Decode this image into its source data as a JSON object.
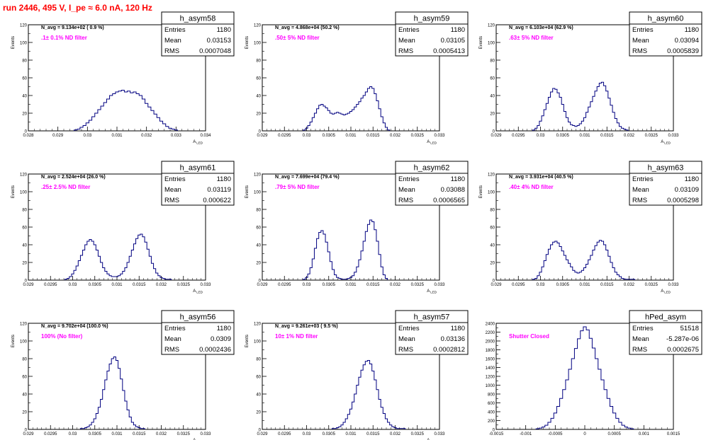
{
  "header": {
    "title": "run 2446,   495 V, I_pe ≈ 6.0 nA, 120 Hz"
  },
  "colors": {
    "title": "#ff0000",
    "annotation": "#ff00ff",
    "histogram": "#000080",
    "frame": "#000000"
  },
  "chart_data": [
    {
      "type": "bar",
      "name": "h_asym58",
      "title": "",
      "ylabel": "Events",
      "xlabel": "A_LED",
      "xlim": [
        0.028,
        0.034
      ],
      "ylim": [
        0,
        120
      ],
      "xticks": [
        "0.028",
        "0.029",
        "0.03",
        "0.031",
        "0.032",
        "0.033",
        "0.034"
      ],
      "yticks": [
        "0",
        "20",
        "40",
        "60",
        "80",
        "100",
        "120"
      ],
      "stats": {
        "title": "h_asym58",
        "rows": [
          [
            "Entries",
            "1180"
          ],
          [
            "Mean",
            "0.03153"
          ],
          [
            "RMS",
            "0.0007048"
          ]
        ]
      },
      "annotations": [
        "N_avg = 9.134e+02 ( 0.9 %)",
        ".1± 0.1% ND filter"
      ],
      "x": [
        0.0296,
        0.0297,
        0.0298,
        0.0299,
        0.03,
        0.0301,
        0.0302,
        0.0303,
        0.0304,
        0.0305,
        0.0306,
        0.0307,
        0.0308,
        0.0309,
        0.031,
        0.0311,
        0.0312,
        0.0313,
        0.0314,
        0.0315,
        0.0316,
        0.0317,
        0.0318,
        0.0319,
        0.032,
        0.0321,
        0.0322,
        0.0323,
        0.0324,
        0.0325,
        0.0326,
        0.0327,
        0.0328,
        0.0329,
        0.033
      ],
      "values": [
        1,
        2,
        4,
        6,
        9,
        12,
        16,
        20,
        24,
        28,
        32,
        36,
        40,
        42,
        44,
        45,
        46,
        44,
        45,
        43,
        44,
        42,
        40,
        36,
        31,
        27,
        23,
        19,
        15,
        11,
        8,
        5,
        3,
        2,
        1
      ]
    },
    {
      "type": "bar",
      "name": "h_asym59",
      "title": "",
      "ylabel": "Events",
      "xlabel": "A_LED",
      "xlim": [
        0.029,
        0.033
      ],
      "ylim": [
        0,
        120
      ],
      "xticks": [
        "0.029",
        "0.0295",
        "0.03",
        "0.0305",
        "0.031",
        "0.0315",
        "0.032",
        "0.0325",
        "0.033"
      ],
      "yticks": [
        "0",
        "20",
        "40",
        "60",
        "80",
        "100",
        "120"
      ],
      "stats": {
        "title": "h_asym59",
        "rows": [
          [
            "Entries",
            "1180"
          ],
          [
            "Mean",
            "0.03105"
          ],
          [
            "RMS",
            "0.0005413"
          ]
        ]
      },
      "annotations": [
        "N_avg = 4.868e+04 (50.2 %)",
        ".50± 5% ND filter"
      ],
      "x": [
        0.02995,
        0.03,
        0.03005,
        0.0301,
        0.03015,
        0.0302,
        0.03025,
        0.0303,
        0.03035,
        0.0304,
        0.03045,
        0.0305,
        0.03055,
        0.0306,
        0.03065,
        0.0307,
        0.03075,
        0.0308,
        0.03085,
        0.0309,
        0.03095,
        0.031,
        0.03105,
        0.0311,
        0.03115,
        0.0312,
        0.03125,
        0.0313,
        0.03135,
        0.0314,
        0.03145,
        0.0315,
        0.03155,
        0.0316,
        0.03165,
        0.0317,
        0.03175,
        0.0318,
        0.03185
      ],
      "values": [
        1,
        3,
        6,
        10,
        15,
        20,
        25,
        29,
        30,
        28,
        26,
        23,
        20,
        19,
        20,
        21,
        20,
        19,
        18,
        19,
        20,
        22,
        24,
        27,
        30,
        33,
        37,
        40,
        44,
        48,
        50,
        48,
        42,
        34,
        25,
        16,
        9,
        4,
        1
      ]
    },
    {
      "type": "bar",
      "name": "h_asym60",
      "title": "",
      "ylabel": "Events",
      "xlabel": "A_LED",
      "xlim": [
        0.029,
        0.033
      ],
      "ylim": [
        0,
        120
      ],
      "xticks": [
        "0.029",
        "0.0295",
        "0.03",
        "0.0305",
        "0.031",
        "0.0315",
        "0.032",
        "0.0325",
        "0.033"
      ],
      "yticks": [
        "0",
        "20",
        "40",
        "60",
        "80",
        "100",
        "120"
      ],
      "stats": {
        "title": "h_asym60",
        "rows": [
          [
            "Entries",
            "1180"
          ],
          [
            "Mean",
            "0.03094"
          ],
          [
            "RMS",
            "0.0005839"
          ]
        ]
      },
      "annotations": [
        "N_avg = 6.103e+04 (62.9 %)",
        ".63± 5% ND filter"
      ],
      "x": [
        0.02985,
        0.0299,
        0.02995,
        0.03,
        0.03005,
        0.0301,
        0.03015,
        0.0302,
        0.03025,
        0.0303,
        0.03035,
        0.0304,
        0.03045,
        0.0305,
        0.03055,
        0.0306,
        0.03065,
        0.0307,
        0.03075,
        0.0308,
        0.03085,
        0.0309,
        0.03095,
        0.031,
        0.03105,
        0.0311,
        0.03115,
        0.0312,
        0.03125,
        0.0313,
        0.03135,
        0.0314,
        0.03145,
        0.0315,
        0.03155,
        0.0316,
        0.03165,
        0.0317,
        0.03175,
        0.0318,
        0.03185,
        0.0319,
        0.03195
      ],
      "values": [
        1,
        3,
        6,
        11,
        17,
        24,
        31,
        38,
        44,
        48,
        47,
        43,
        38,
        30,
        22,
        15,
        10,
        7,
        6,
        5,
        6,
        8,
        11,
        15,
        21,
        27,
        33,
        39,
        45,
        50,
        54,
        55,
        51,
        45,
        37,
        29,
        21,
        14,
        9,
        5,
        3,
        2,
        1
      ]
    },
    {
      "type": "bar",
      "name": "h_asym61",
      "title": "",
      "ylabel": "Events",
      "xlabel": "A_LED",
      "xlim": [
        0.029,
        0.033
      ],
      "ylim": [
        0,
        120
      ],
      "xticks": [
        "0.029",
        "0.0295",
        "0.03",
        "0.0305",
        "0.031",
        "0.0315",
        "0.032",
        "0.0325",
        "0.033"
      ],
      "yticks": [
        "0",
        "20",
        "40",
        "60",
        "80",
        "100",
        "120"
      ],
      "stats": {
        "title": "h_asym61",
        "rows": [
          [
            "Entries",
            "1180"
          ],
          [
            "Mean",
            "0.03119"
          ],
          [
            "RMS",
            "0.000622"
          ]
        ]
      },
      "annotations": [
        "N_avg = 2.524e+04 (26.0 %)",
        ".25± 2.5% ND filter"
      ],
      "x": [
        0.02985,
        0.0299,
        0.02995,
        0.03,
        0.03005,
        0.0301,
        0.03015,
        0.0302,
        0.03025,
        0.0303,
        0.03035,
        0.0304,
        0.03045,
        0.0305,
        0.03055,
        0.0306,
        0.03065,
        0.0307,
        0.03075,
        0.0308,
        0.03085,
        0.0309,
        0.03095,
        0.031,
        0.03105,
        0.0311,
        0.03115,
        0.0312,
        0.03125,
        0.0313,
        0.03135,
        0.0314,
        0.03145,
        0.0315,
        0.03155,
        0.0316,
        0.03165,
        0.0317,
        0.03175,
        0.0318,
        0.03185,
        0.0319,
        0.03195,
        0.032,
        0.03205,
        0.0321,
        0.03215,
        0.0322
      ],
      "values": [
        1,
        2,
        4,
        7,
        11,
        16,
        22,
        28,
        34,
        40,
        44,
        46,
        44,
        40,
        34,
        27,
        20,
        14,
        10,
        7,
        5,
        4,
        4,
        4,
        5,
        7,
        10,
        14,
        20,
        27,
        34,
        41,
        47,
        51,
        52,
        49,
        43,
        35,
        27,
        19,
        13,
        8,
        5,
        3,
        2,
        1,
        1,
        1
      ]
    },
    {
      "type": "bar",
      "name": "h_asym62",
      "title": "",
      "ylabel": "Events",
      "xlabel": "A_LED",
      "xlim": [
        0.029,
        0.033
      ],
      "ylim": [
        0,
        120
      ],
      "xticks": [
        "0.029",
        "0.0295",
        "0.03",
        "0.0305",
        "0.031",
        "0.0315",
        "0.032",
        "0.0325",
        "0.033"
      ],
      "yticks": [
        "0",
        "20",
        "40",
        "60",
        "80",
        "100",
        "120"
      ],
      "stats": {
        "title": "h_asym62",
        "rows": [
          [
            "Entries",
            "1180"
          ],
          [
            "Mean",
            "0.03088"
          ],
          [
            "RMS",
            "0.0006565"
          ]
        ]
      },
      "annotations": [
        "N_avg = 7.699e+04 (79.4 %)",
        ".79± 5% ND filter"
      ],
      "x": [
        0.02995,
        0.03,
        0.03005,
        0.0301,
        0.03015,
        0.0302,
        0.03025,
        0.0303,
        0.03035,
        0.0304,
        0.03045,
        0.0305,
        0.03055,
        0.0306,
        0.03065,
        0.0307,
        0.03075,
        0.0308,
        0.03085,
        0.0309,
        0.03095,
        0.031,
        0.03105,
        0.0311,
        0.03115,
        0.0312,
        0.03125,
        0.0313,
        0.03135,
        0.0314,
        0.03145,
        0.0315,
        0.03155,
        0.0316,
        0.03165,
        0.0317,
        0.03175,
        0.0318
      ],
      "values": [
        1,
        3,
        7,
        14,
        24,
        36,
        47,
        54,
        56,
        52,
        43,
        32,
        21,
        12,
        6,
        3,
        2,
        1,
        1,
        1,
        2,
        3,
        5,
        9,
        15,
        23,
        33,
        44,
        55,
        63,
        68,
        66,
        57,
        44,
        29,
        15,
        6,
        2
      ]
    },
    {
      "type": "bar",
      "name": "h_asym63",
      "title": "",
      "ylabel": "Events",
      "xlabel": "A_LED",
      "xlim": [
        0.029,
        0.033
      ],
      "ylim": [
        0,
        120
      ],
      "xticks": [
        "0.029",
        "0.0295",
        "0.03",
        "0.0305",
        "0.031",
        "0.0315",
        "0.032",
        "0.0325",
        "0.033"
      ],
      "yticks": [
        "0",
        "20",
        "40",
        "60",
        "80",
        "100",
        "120"
      ],
      "stats": {
        "title": "h_asym63",
        "rows": [
          [
            "Entries",
            "1180"
          ],
          [
            "Mean",
            "0.03109"
          ],
          [
            "RMS",
            "0.0005298"
          ]
        ]
      },
      "annotations": [
        "N_avg = 3.931e+04 (40.5 %)",
        ".40± 4% ND filter"
      ],
      "x": [
        0.02985,
        0.0299,
        0.02995,
        0.03,
        0.03005,
        0.0301,
        0.03015,
        0.0302,
        0.03025,
        0.0303,
        0.03035,
        0.0304,
        0.03045,
        0.0305,
        0.03055,
        0.0306,
        0.03065,
        0.0307,
        0.03075,
        0.0308,
        0.03085,
        0.0309,
        0.03095,
        0.031,
        0.03105,
        0.0311,
        0.03115,
        0.0312,
        0.03125,
        0.0313,
        0.03135,
        0.0314,
        0.03145,
        0.0315,
        0.03155,
        0.0316,
        0.03165,
        0.0317,
        0.03175,
        0.0318,
        0.03185,
        0.0319,
        0.03195,
        0.032,
        0.03205,
        0.0321
      ],
      "values": [
        1,
        2,
        5,
        9,
        15,
        22,
        29,
        35,
        40,
        43,
        44,
        42,
        38,
        33,
        28,
        23,
        19,
        15,
        11,
        9,
        8,
        9,
        11,
        14,
        18,
        23,
        28,
        34,
        39,
        43,
        45,
        44,
        40,
        34,
        27,
        20,
        14,
        9,
        6,
        4,
        2,
        1,
        1,
        1,
        1,
        1
      ]
    },
    {
      "type": "bar",
      "name": "h_asym56",
      "title": "",
      "ylabel": "Events",
      "xlabel": "A_LED",
      "xlim": [
        0.029,
        0.033
      ],
      "ylim": [
        0,
        120
      ],
      "xticks": [
        "0.029",
        "0.0295",
        "0.03",
        "0.0305",
        "0.031",
        "0.0315",
        "0.032",
        "0.0325",
        "0.033"
      ],
      "yticks": [
        "0",
        "20",
        "40",
        "60",
        "80",
        "100",
        "120"
      ],
      "stats": {
        "title": "h_asym56",
        "rows": [
          [
            "Entries",
            "1180"
          ],
          [
            "Mean",
            "0.0309"
          ],
          [
            "RMS",
            "0.0002436"
          ]
        ]
      },
      "annotations": [
        "N_avg = 9.702e+04 (100.0 %)",
        "100% (No filter)"
      ],
      "x": [
        0.0302,
        0.03025,
        0.0303,
        0.03035,
        0.0304,
        0.03045,
        0.0305,
        0.03055,
        0.0306,
        0.03065,
        0.0307,
        0.03075,
        0.0308,
        0.03085,
        0.0309,
        0.03095,
        0.031,
        0.03105,
        0.0311,
        0.03115,
        0.0312,
        0.03125,
        0.0313,
        0.03135,
        0.0314,
        0.03145,
        0.0315,
        0.03155,
        0.0316
      ],
      "values": [
        1,
        1,
        2,
        3,
        5,
        8,
        12,
        18,
        25,
        34,
        45,
        56,
        66,
        74,
        80,
        82,
        78,
        69,
        57,
        44,
        32,
        22,
        14,
        8,
        5,
        3,
        2,
        1,
        1
      ]
    },
    {
      "type": "bar",
      "name": "h_asym57",
      "title": "",
      "ylabel": "Events",
      "xlabel": "A_LED",
      "xlim": [
        0.029,
        0.033
      ],
      "ylim": [
        0,
        120
      ],
      "xticks": [
        "0.029",
        "0.0295",
        "0.03",
        "0.0305",
        "0.031",
        "0.0315",
        "0.032",
        "0.0325",
        "0.033"
      ],
      "yticks": [
        "0",
        "20",
        "40",
        "60",
        "80",
        "100",
        "120"
      ],
      "stats": {
        "title": "h_asym57",
        "rows": [
          [
            "Entries",
            "1180"
          ],
          [
            "Mean",
            "0.03136"
          ],
          [
            "RMS",
            "0.0002812"
          ]
        ]
      },
      "annotations": [
        "N_avg = 9.261e+03 ( 9.5 %)",
        "10± 1% ND filter"
      ],
      "x": [
        0.0306,
        0.03065,
        0.0307,
        0.03075,
        0.0308,
        0.03085,
        0.0309,
        0.03095,
        0.031,
        0.03105,
        0.0311,
        0.03115,
        0.0312,
        0.03125,
        0.0313,
        0.03135,
        0.0314,
        0.03145,
        0.0315,
        0.03155,
        0.0316,
        0.03165,
        0.0317,
        0.03175,
        0.0318,
        0.03185,
        0.0319,
        0.03195,
        0.032,
        0.03205,
        0.0321,
        0.03215,
        0.0322
      ],
      "values": [
        1,
        1,
        2,
        3,
        5,
        8,
        12,
        17,
        23,
        31,
        40,
        50,
        59,
        67,
        73,
        77,
        78,
        74,
        66,
        56,
        45,
        34,
        25,
        18,
        12,
        8,
        5,
        3,
        2,
        1,
        1,
        1,
        1
      ]
    },
    {
      "type": "bar",
      "name": "hPed_asym",
      "title": "",
      "ylabel": "",
      "xlabel": "",
      "xlim": [
        -0.0015,
        0.0015
      ],
      "ylim": [
        0,
        2400
      ],
      "xticks": [
        "-0.0015",
        "-0.001",
        "-0.0005",
        "0",
        "0.0005",
        "0.001",
        "0.0015"
      ],
      "yticks": [
        "0",
        "200",
        "400",
        "600",
        "800",
        "1000",
        "1200",
        "1400",
        "1600",
        "1800",
        "2000",
        "2200",
        "2400"
      ],
      "stats": {
        "title": "hPed_asym",
        "rows": [
          [
            "Entries",
            "51518"
          ],
          [
            "Mean",
            "-5.287e-06"
          ],
          [
            "RMS",
            "0.0002675"
          ]
        ]
      },
      "annotations": [
        "",
        "Shutter Closed"
      ],
      "x": [
        -0.0008,
        -0.00075,
        -0.0007,
        -0.00065,
        -0.0006,
        -0.00055,
        -0.0005,
        -0.00045,
        -0.0004,
        -0.00035,
        -0.0003,
        -0.00025,
        -0.0002,
        -0.00015,
        -0.0001,
        -5e-05,
        0.0,
        5e-05,
        0.0001,
        0.00015,
        0.0002,
        0.00025,
        0.0003,
        0.00035,
        0.0004,
        0.00045,
        0.0005,
        0.00055,
        0.0006,
        0.00065,
        0.0007,
        0.00075,
        0.0008
      ],
      "values": [
        15,
        30,
        55,
        95,
        160,
        250,
        370,
        520,
        700,
        900,
        1120,
        1360,
        1600,
        1830,
        2050,
        2230,
        2320,
        2250,
        2060,
        1840,
        1600,
        1360,
        1120,
        900,
        700,
        520,
        370,
        250,
        160,
        95,
        55,
        30,
        15
      ]
    }
  ]
}
